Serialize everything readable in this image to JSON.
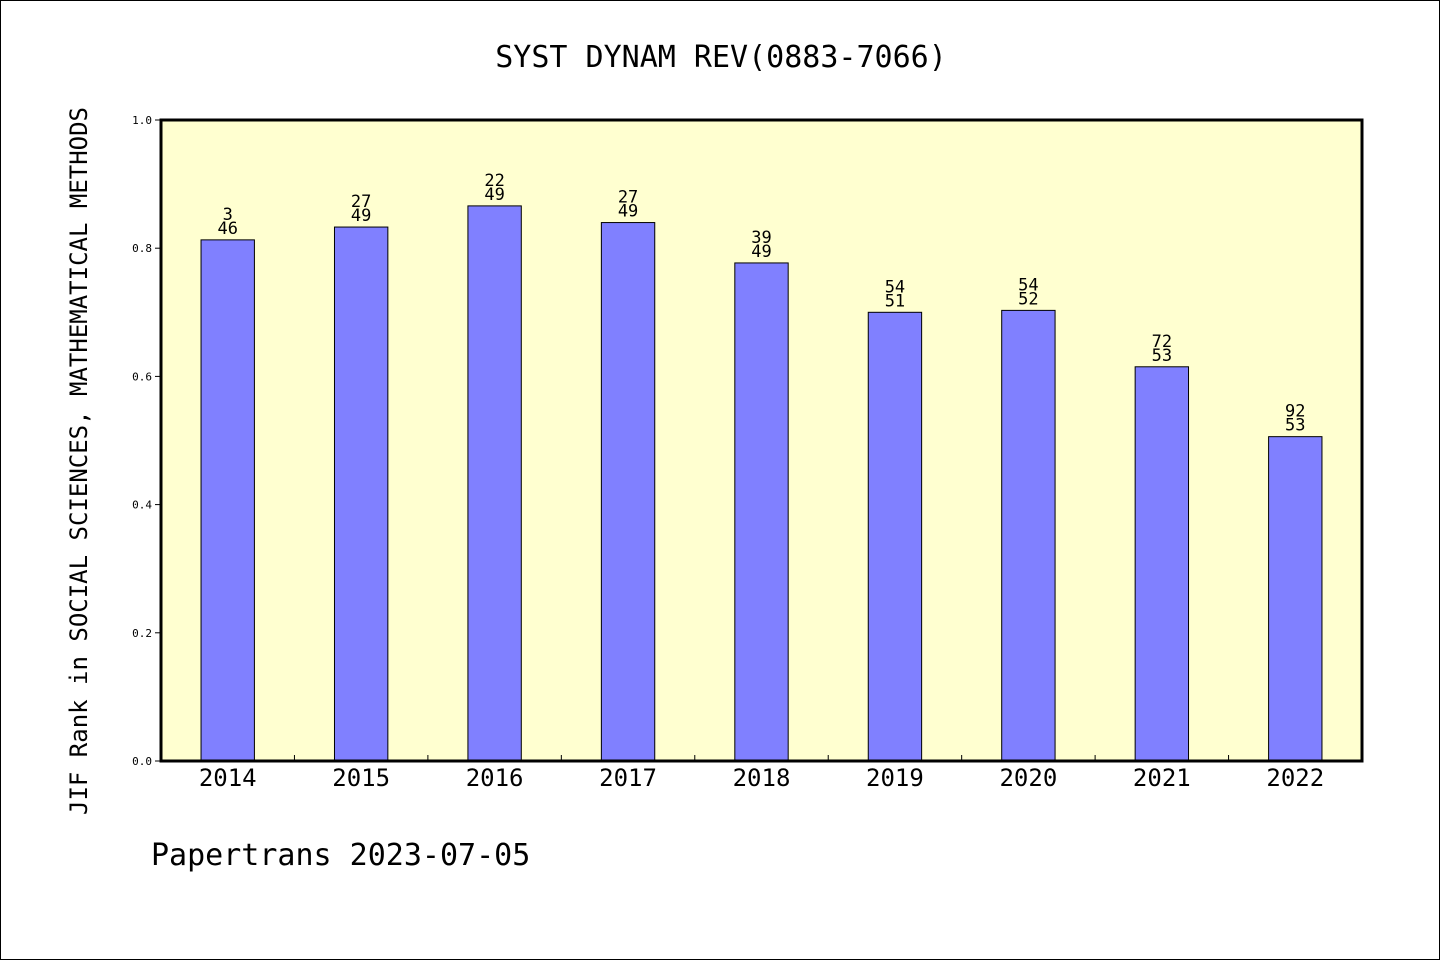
{
  "chart_data": {
    "type": "bar",
    "title": "SYST DYNAM REV(0883-7066)",
    "xlabel": "",
    "ylabel": "JIF Rank in SOCIAL SCIENCES, MATHEMATICAL METHODS",
    "ylim": [
      0,
      1.0
    ],
    "yticks": [
      "0.0",
      "0.2",
      "0.4",
      "0.6",
      "0.8",
      "1.0"
    ],
    "categories": [
      "2014",
      "2015",
      "2016",
      "2017",
      "2018",
      "2019",
      "2020",
      "2021",
      "2022"
    ],
    "values": [
      0.813,
      0.833,
      0.866,
      0.84,
      0.777,
      0.7,
      0.703,
      0.615,
      0.506
    ],
    "bar_labels": [
      [
        "3",
        "46"
      ],
      [
        "27",
        "49"
      ],
      [
        "22",
        "49"
      ],
      [
        "27",
        "49"
      ],
      [
        "39",
        "49"
      ],
      [
        "54",
        "51"
      ],
      [
        "54",
        "52"
      ],
      [
        "72",
        "53"
      ],
      [
        "92",
        "53"
      ]
    ],
    "grid": false,
    "colors": {
      "plot_background": "#ffffd0",
      "bar_fill": "#8080ff",
      "bar_stroke": "#000000"
    }
  },
  "footer": {
    "text": "Papertrans 2023-07-05"
  }
}
